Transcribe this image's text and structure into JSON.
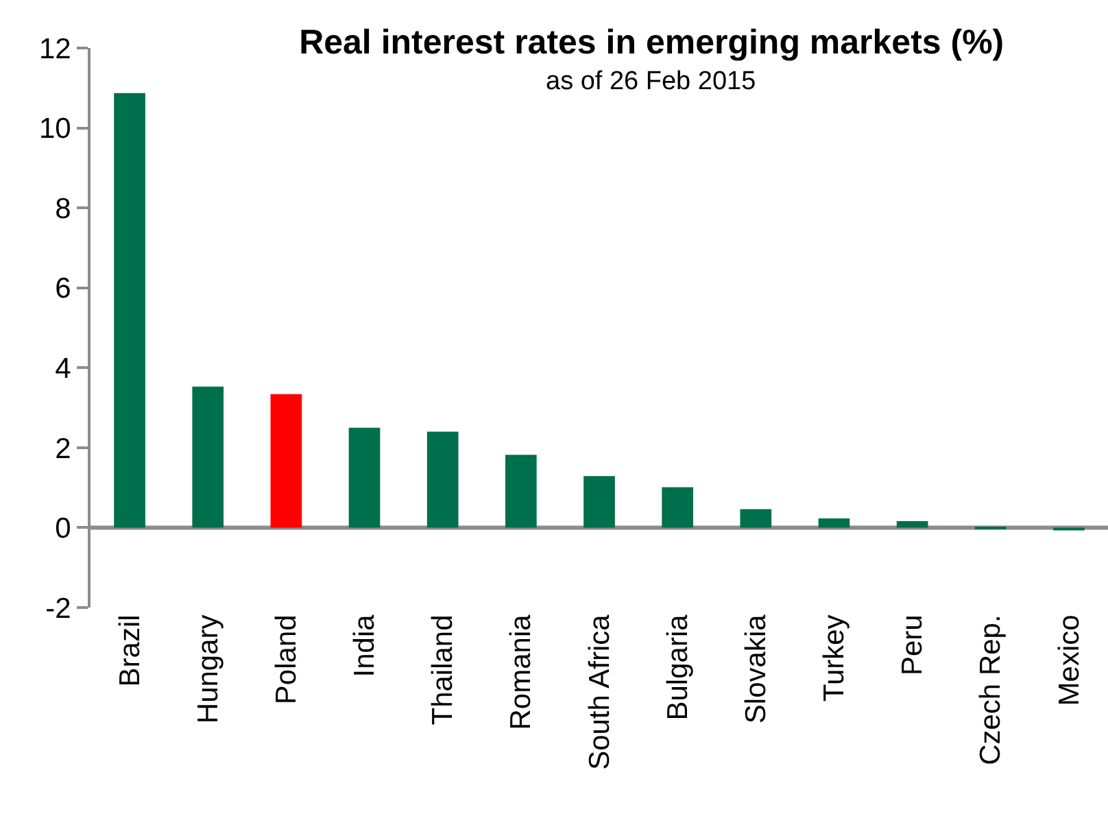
{
  "chart_data": {
    "type": "bar",
    "title": "Real interest rates in emerging markets (%)",
    "subtitle": "as of 26 Feb 2015",
    "categories": [
      "Brazil",
      "Hungary",
      "Poland",
      "India",
      "Thailand",
      "Romania",
      "South Africa",
      "Bulgaria",
      "Slovakia",
      "Turkey",
      "Peru",
      "Czech Rep.",
      "Mexico"
    ],
    "values": [
      10.87,
      3.53,
      3.34,
      2.5,
      2.4,
      1.82,
      1.29,
      1.01,
      0.46,
      0.23,
      0.16,
      -0.04,
      -0.07
    ],
    "colors": [
      "#006f4b",
      "#006f4b",
      "#ff0000",
      "#006f4b",
      "#006f4b",
      "#006f4b",
      "#006f4b",
      "#006f4b",
      "#006f4b",
      "#006f4b",
      "#006f4b",
      "#006f4b",
      "#006f4b"
    ],
    "ref_lines": [
      {
        "axis": "y",
        "value": 0,
        "color": "#8c8c8c"
      }
    ],
    "ylim": [
      -2,
      12
    ],
    "yticks": [
      -2,
      0,
      2,
      4,
      6,
      8,
      10,
      12
    ],
    "grid": false,
    "legend": false
  }
}
